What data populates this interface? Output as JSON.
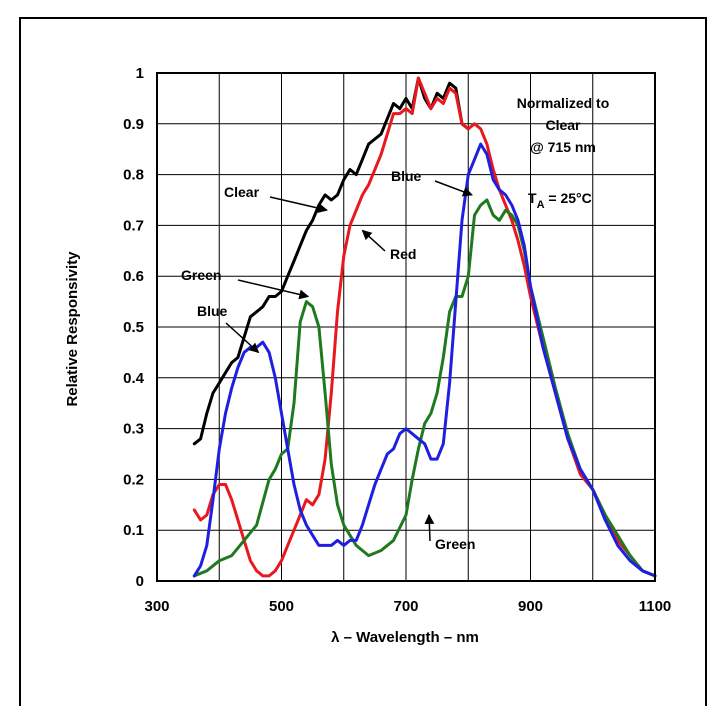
{
  "chart_data": {
    "type": "line",
    "xlabel": "λ – Wavelength – nm",
    "ylabel": "Relative Responsivity",
    "xlim": [
      300,
      1100
    ],
    "ylim": [
      0,
      1
    ],
    "xticks": [
      300,
      500,
      700,
      900,
      1100
    ],
    "yticks": [
      0,
      0.1,
      0.2,
      0.3,
      0.4,
      0.5,
      0.6,
      0.7,
      0.8,
      0.9,
      1
    ],
    "grid": true,
    "note": {
      "lines": [
        "Normalized to",
        "Clear",
        "@ 715 nm"
      ],
      "temp_main": "T",
      "temp_sub": "A",
      "temp_rest": " = 25°C"
    },
    "series": [
      {
        "name": "Clear",
        "color": "#000000",
        "x": [
          360,
          370,
          380,
          390,
          400,
          410,
          420,
          430,
          440,
          450,
          460,
          470,
          480,
          490,
          500,
          510,
          520,
          530,
          540,
          550,
          560,
          570,
          580,
          590,
          600,
          610,
          620,
          630,
          640,
          650,
          660,
          670,
          680,
          690,
          700,
          710,
          720,
          730,
          740,
          750,
          760,
          770,
          780,
          790,
          800
        ],
        "y": [
          0.27,
          0.28,
          0.33,
          0.37,
          0.39,
          0.41,
          0.43,
          0.44,
          0.48,
          0.52,
          0.53,
          0.54,
          0.56,
          0.56,
          0.57,
          0.6,
          0.63,
          0.66,
          0.69,
          0.71,
          0.74,
          0.76,
          0.75,
          0.76,
          0.79,
          0.81,
          0.8,
          0.83,
          0.86,
          0.87,
          0.88,
          0.91,
          0.94,
          0.93,
          0.95,
          0.93,
          0.99,
          0.95,
          0.93,
          0.96,
          0.95,
          0.98,
          0.97,
          0.9,
          0.89
        ]
      },
      {
        "name": "Red",
        "color": "#e8181e",
        "x": [
          360,
          370,
          380,
          390,
          400,
          410,
          420,
          430,
          440,
          450,
          460,
          470,
          480,
          490,
          500,
          510,
          520,
          530,
          540,
          550,
          560,
          570,
          580,
          590,
          600,
          610,
          620,
          630,
          640,
          650,
          660,
          670,
          680,
          690,
          700,
          710,
          720,
          730,
          740,
          750,
          760,
          770,
          780,
          790,
          800,
          810,
          820,
          830,
          840,
          850,
          860,
          870,
          880,
          890,
          900,
          920,
          940,
          960,
          980,
          1000,
          1020,
          1040,
          1060,
          1080,
          1100
        ],
        "y": [
          0.14,
          0.12,
          0.13,
          0.17,
          0.19,
          0.19,
          0.16,
          0.12,
          0.08,
          0.04,
          0.02,
          0.01,
          0.01,
          0.02,
          0.04,
          0.07,
          0.1,
          0.13,
          0.16,
          0.15,
          0.17,
          0.24,
          0.37,
          0.53,
          0.64,
          0.7,
          0.73,
          0.76,
          0.78,
          0.81,
          0.84,
          0.88,
          0.92,
          0.92,
          0.93,
          0.92,
          0.99,
          0.96,
          0.93,
          0.95,
          0.94,
          0.97,
          0.96,
          0.9,
          0.89,
          0.9,
          0.89,
          0.86,
          0.81,
          0.77,
          0.74,
          0.71,
          0.67,
          0.62,
          0.56,
          0.46,
          0.37,
          0.28,
          0.21,
          0.18,
          0.13,
          0.08,
          0.05,
          0.02,
          0.01
        ]
      },
      {
        "name": "Green",
        "color": "#1f7a1f",
        "x": [
          360,
          380,
          400,
          420,
          440,
          460,
          480,
          490,
          500,
          510,
          520,
          530,
          540,
          550,
          560,
          570,
          580,
          590,
          600,
          610,
          620,
          640,
          660,
          680,
          700,
          710,
          720,
          730,
          740,
          750,
          760,
          770,
          780,
          790,
          800,
          810,
          820,
          830,
          840,
          850,
          860,
          870,
          880,
          890,
          900,
          920,
          940,
          960,
          980,
          1000,
          1020,
          1040,
          1060,
          1080,
          1100
        ],
        "y": [
          0.01,
          0.02,
          0.04,
          0.05,
          0.08,
          0.11,
          0.2,
          0.22,
          0.25,
          0.26,
          0.35,
          0.51,
          0.55,
          0.54,
          0.5,
          0.37,
          0.23,
          0.15,
          0.11,
          0.09,
          0.07,
          0.05,
          0.06,
          0.08,
          0.13,
          0.2,
          0.26,
          0.31,
          0.33,
          0.37,
          0.44,
          0.53,
          0.56,
          0.56,
          0.6,
          0.72,
          0.74,
          0.75,
          0.72,
          0.71,
          0.73,
          0.72,
          0.7,
          0.65,
          0.58,
          0.48,
          0.38,
          0.29,
          0.22,
          0.18,
          0.13,
          0.09,
          0.05,
          0.02,
          0.01
        ]
      },
      {
        "name": "Blue",
        "color": "#1f1fe0",
        "x": [
          360,
          370,
          380,
          390,
          400,
          410,
          420,
          430,
          440,
          450,
          460,
          470,
          480,
          490,
          500,
          510,
          520,
          530,
          540,
          550,
          560,
          570,
          580,
          590,
          600,
          610,
          620,
          630,
          640,
          650,
          660,
          670,
          680,
          690,
          700,
          710,
          720,
          730,
          740,
          750,
          760,
          770,
          780,
          790,
          800,
          810,
          820,
          830,
          840,
          850,
          860,
          870,
          880,
          890,
          900,
          920,
          940,
          960,
          980,
          1000,
          1020,
          1040,
          1060,
          1080,
          1100
        ],
        "y": [
          0.01,
          0.03,
          0.07,
          0.16,
          0.26,
          0.33,
          0.38,
          0.42,
          0.45,
          0.46,
          0.46,
          0.47,
          0.45,
          0.4,
          0.33,
          0.26,
          0.19,
          0.14,
          0.11,
          0.09,
          0.07,
          0.07,
          0.07,
          0.08,
          0.07,
          0.08,
          0.08,
          0.11,
          0.15,
          0.19,
          0.22,
          0.25,
          0.26,
          0.29,
          0.3,
          0.29,
          0.28,
          0.27,
          0.24,
          0.24,
          0.27,
          0.39,
          0.55,
          0.71,
          0.8,
          0.83,
          0.86,
          0.84,
          0.79,
          0.77,
          0.76,
          0.74,
          0.71,
          0.66,
          0.58,
          0.46,
          0.37,
          0.28,
          0.22,
          0.18,
          0.12,
          0.07,
          0.04,
          0.02,
          0.01
        ]
      }
    ],
    "annotations": [
      {
        "text": "Clear",
        "series": "Clear",
        "tip": [
          573,
          0.73
        ]
      },
      {
        "text": "Red",
        "series": "Red",
        "tip": [
          630,
          0.69
        ]
      },
      {
        "text": "Green",
        "series": "Green",
        "tip": [
          543,
          0.56
        ]
      },
      {
        "text": "Blue",
        "series": "Blue",
        "tip": [
          463,
          0.45
        ]
      },
      {
        "text": "Blue",
        "series": "Blue",
        "tip": [
          806,
          0.76
        ]
      },
      {
        "text": "Green",
        "series": "Green",
        "tip": [
          737,
          0.13
        ]
      }
    ]
  }
}
